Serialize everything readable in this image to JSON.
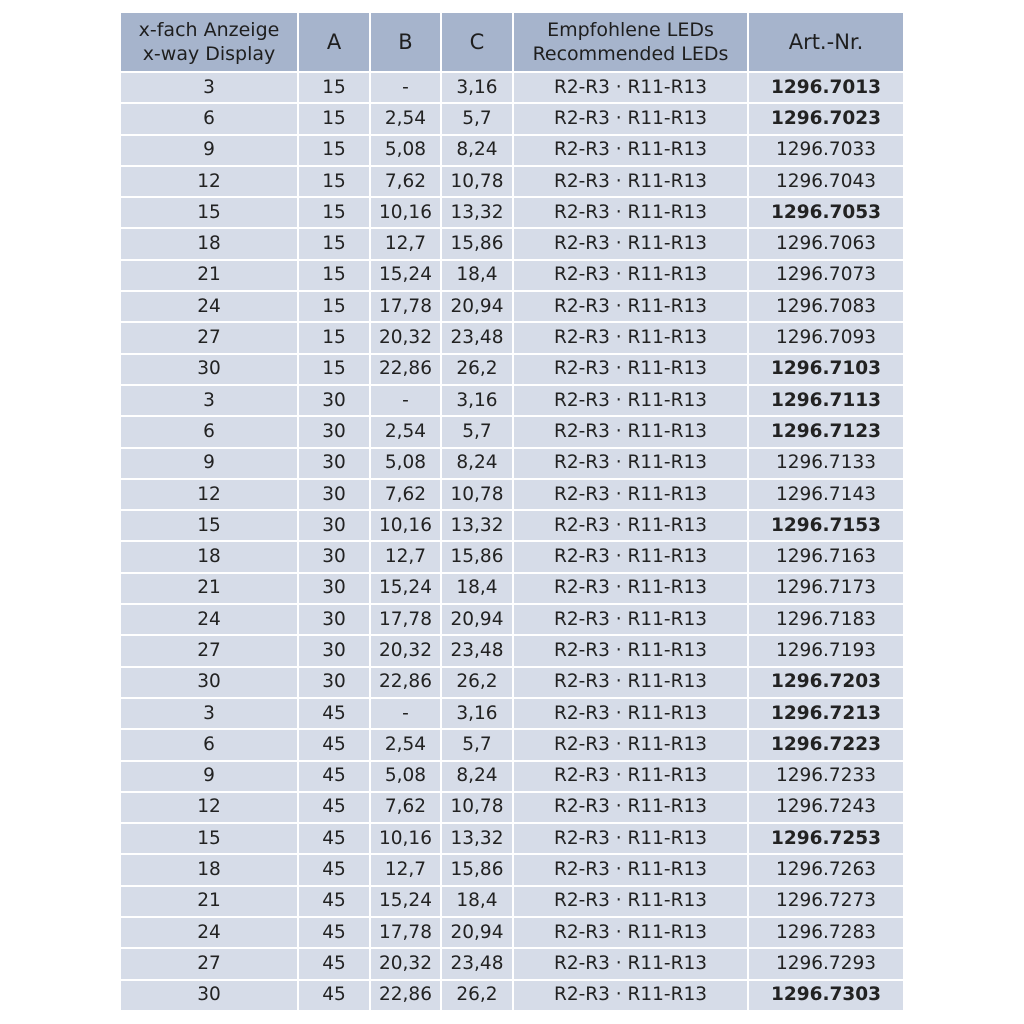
{
  "header": {
    "col0_line1": "x-fach Anzeige",
    "col0_line2": "x-way Display",
    "col1": "A",
    "col2": "B",
    "col3": "C",
    "col4_line1": "Empfohlene LEDs",
    "col4_line2": "Recommended LEDs",
    "col5": "Art.-Nr."
  },
  "rows": [
    {
      "x": "3",
      "a": "15",
      "b": "-",
      "c": "3,16",
      "leds": "R2-R3 · R11-R13",
      "art": "1296.7013",
      "bold": true
    },
    {
      "x": "6",
      "a": "15",
      "b": "2,54",
      "c": "5,7",
      "leds": "R2-R3 · R11-R13",
      "art": "1296.7023",
      "bold": true
    },
    {
      "x": "9",
      "a": "15",
      "b": "5,08",
      "c": "8,24",
      "leds": "R2-R3 · R11-R13",
      "art": "1296.7033",
      "bold": false
    },
    {
      "x": "12",
      "a": "15",
      "b": "7,62",
      "c": "10,78",
      "leds": "R2-R3 · R11-R13",
      "art": "1296.7043",
      "bold": false
    },
    {
      "x": "15",
      "a": "15",
      "b": "10,16",
      "c": "13,32",
      "leds": "R2-R3 · R11-R13",
      "art": "1296.7053",
      "bold": true
    },
    {
      "x": "18",
      "a": "15",
      "b": "12,7",
      "c": "15,86",
      "leds": "R2-R3 · R11-R13",
      "art": "1296.7063",
      "bold": false
    },
    {
      "x": "21",
      "a": "15",
      "b": "15,24",
      "c": "18,4",
      "leds": "R2-R3 · R11-R13",
      "art": "1296.7073",
      "bold": false
    },
    {
      "x": "24",
      "a": "15",
      "b": "17,78",
      "c": "20,94",
      "leds": "R2-R3 · R11-R13",
      "art": "1296.7083",
      "bold": false
    },
    {
      "x": "27",
      "a": "15",
      "b": "20,32",
      "c": "23,48",
      "leds": "R2-R3 · R11-R13",
      "art": "1296.7093",
      "bold": false
    },
    {
      "x": "30",
      "a": "15",
      "b": "22,86",
      "c": "26,2",
      "leds": "R2-R3 · R11-R13",
      "art": "1296.7103",
      "bold": true
    },
    {
      "x": "3",
      "a": "30",
      "b": "-",
      "c": "3,16",
      "leds": "R2-R3 · R11-R13",
      "art": "1296.7113",
      "bold": true
    },
    {
      "x": "6",
      "a": "30",
      "b": "2,54",
      "c": "5,7",
      "leds": "R2-R3 · R11-R13",
      "art": "1296.7123",
      "bold": true
    },
    {
      "x": "9",
      "a": "30",
      "b": "5,08",
      "c": "8,24",
      "leds": "R2-R3 · R11-R13",
      "art": "1296.7133",
      "bold": false
    },
    {
      "x": "12",
      "a": "30",
      "b": "7,62",
      "c": "10,78",
      "leds": "R2-R3 · R11-R13",
      "art": "1296.7143",
      "bold": false
    },
    {
      "x": "15",
      "a": "30",
      "b": "10,16",
      "c": "13,32",
      "leds": "R2-R3 · R11-R13",
      "art": "1296.7153",
      "bold": true
    },
    {
      "x": "18",
      "a": "30",
      "b": "12,7",
      "c": "15,86",
      "leds": "R2-R3 · R11-R13",
      "art": "1296.7163",
      "bold": false
    },
    {
      "x": "21",
      "a": "30",
      "b": "15,24",
      "c": "18,4",
      "leds": "R2-R3 · R11-R13",
      "art": "1296.7173",
      "bold": false
    },
    {
      "x": "24",
      "a": "30",
      "b": "17,78",
      "c": "20,94",
      "leds": "R2-R3 · R11-R13",
      "art": "1296.7183",
      "bold": false
    },
    {
      "x": "27",
      "a": "30",
      "b": "20,32",
      "c": "23,48",
      "leds": "R2-R3 · R11-R13",
      "art": "1296.7193",
      "bold": false
    },
    {
      "x": "30",
      "a": "30",
      "b": "22,86",
      "c": "26,2",
      "leds": "R2-R3 · R11-R13",
      "art": "1296.7203",
      "bold": true
    },
    {
      "x": "3",
      "a": "45",
      "b": "-",
      "c": "3,16",
      "leds": "R2-R3 · R11-R13",
      "art": "1296.7213",
      "bold": true
    },
    {
      "x": "6",
      "a": "45",
      "b": "2,54",
      "c": "5,7",
      "leds": "R2-R3 · R11-R13",
      "art": "1296.7223",
      "bold": true
    },
    {
      "x": "9",
      "a": "45",
      "b": "5,08",
      "c": "8,24",
      "leds": "R2-R3 · R11-R13",
      "art": "1296.7233",
      "bold": false
    },
    {
      "x": "12",
      "a": "45",
      "b": "7,62",
      "c": "10,78",
      "leds": "R2-R3 · R11-R13",
      "art": "1296.7243",
      "bold": false
    },
    {
      "x": "15",
      "a": "45",
      "b": "10,16",
      "c": "13,32",
      "leds": "R2-R3 · R11-R13",
      "art": "1296.7253",
      "bold": true
    },
    {
      "x": "18",
      "a": "45",
      "b": "12,7",
      "c": "15,86",
      "leds": "R2-R3 · R11-R13",
      "art": "1296.7263",
      "bold": false
    },
    {
      "x": "21",
      "a": "45",
      "b": "15,24",
      "c": "18,4",
      "leds": "R2-R3 · R11-R13",
      "art": "1296.7273",
      "bold": false
    },
    {
      "x": "24",
      "a": "45",
      "b": "17,78",
      "c": "20,94",
      "leds": "R2-R3 · R11-R13",
      "art": "1296.7283",
      "bold": false
    },
    {
      "x": "27",
      "a": "45",
      "b": "20,32",
      "c": "23,48",
      "leds": "R2-R3 · R11-R13",
      "art": "1296.7293",
      "bold": false
    },
    {
      "x": "30",
      "a": "45",
      "b": "22,86",
      "c": "26,2",
      "leds": "R2-R3 · R11-R13",
      "art": "1296.7303",
      "bold": true
    }
  ],
  "colors": {
    "header_bg": "#a6b4cc",
    "row_bg": "#d6dce8",
    "border": "#ffffff"
  }
}
